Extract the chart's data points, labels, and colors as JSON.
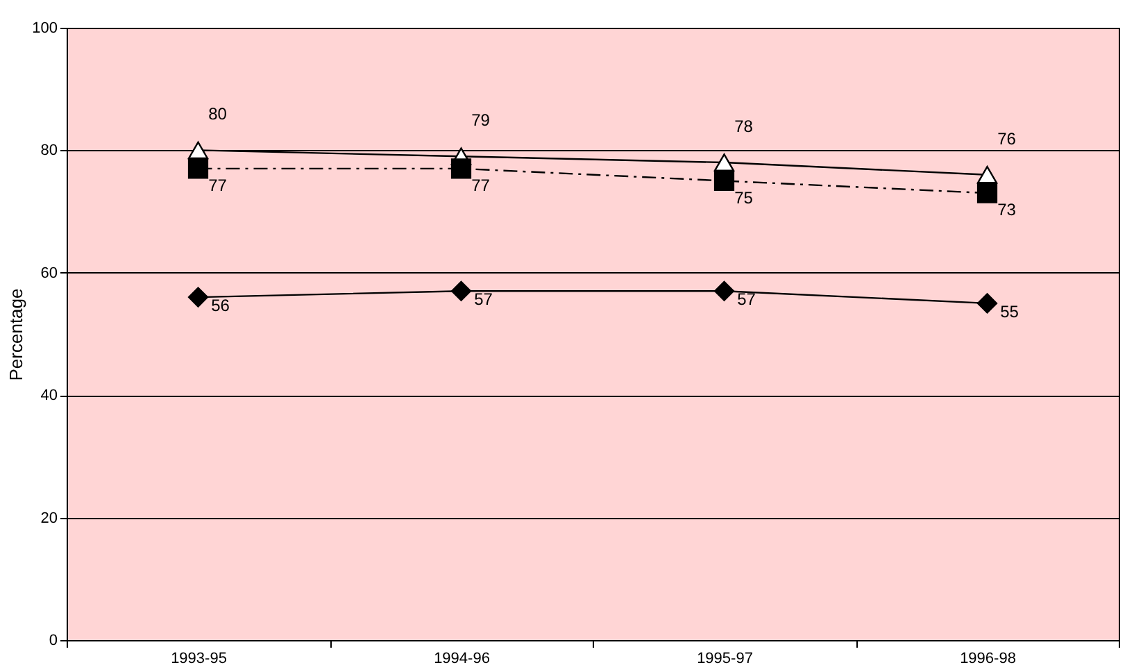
{
  "chart_data": {
    "type": "line",
    "ylabel": "Percentage",
    "categories": [
      "1993-95",
      "1994-96",
      "1995-97",
      "1996-98"
    ],
    "series": [
      {
        "color": "#000000",
        "values": [
          80,
          79,
          78,
          76
        ],
        "marker": "triangle",
        "line_style": "solid"
      },
      {
        "color": "#000000",
        "values": [
          77,
          77,
          75,
          73
        ],
        "marker": "square",
        "line_style": "dashed"
      },
      {
        "color": "#000000",
        "values": [
          56,
          57,
          57,
          55
        ],
        "marker": "diamond",
        "line_style": "solid"
      }
    ],
    "ylim": [
      0,
      100
    ],
    "yticks": [
      0,
      20,
      40,
      60,
      80,
      100
    ],
    "grid": "y",
    "data_labels": true
  }
}
